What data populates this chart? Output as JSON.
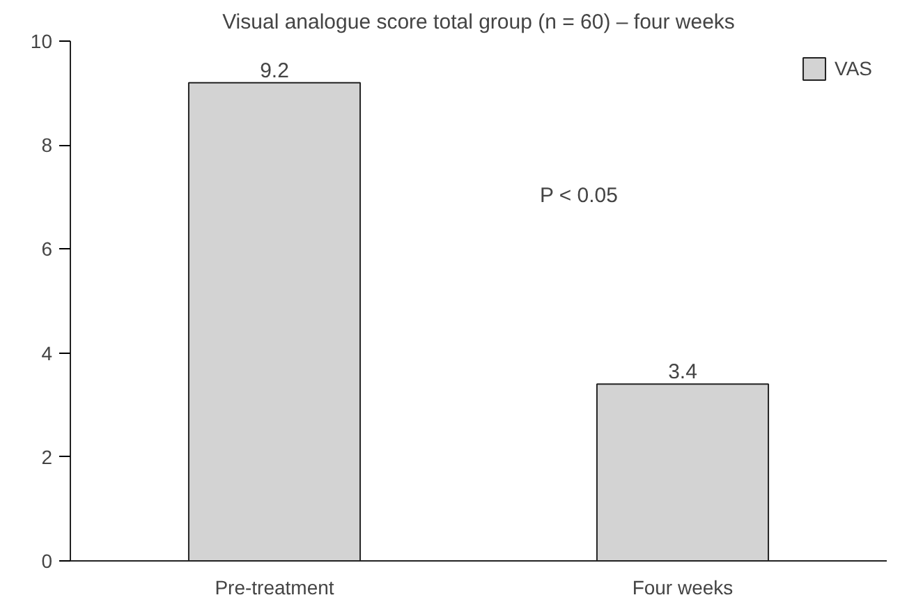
{
  "chart_data": {
    "type": "bar",
    "title": "Visual analogue score total group (n = 60) – four weeks",
    "categories": [
      "Pre-treatment",
      "Four weeks"
    ],
    "series": [
      {
        "name": "VAS",
        "color": "#d3d3d3",
        "values": [
          9.2,
          3.4
        ]
      }
    ],
    "ylim": [
      0,
      10
    ],
    "yticks": [
      0,
      2,
      4,
      6,
      8,
      10
    ],
    "grid": false,
    "legend": "top right",
    "data_labels": true,
    "annotations": [
      "P < 0.05"
    ]
  }
}
